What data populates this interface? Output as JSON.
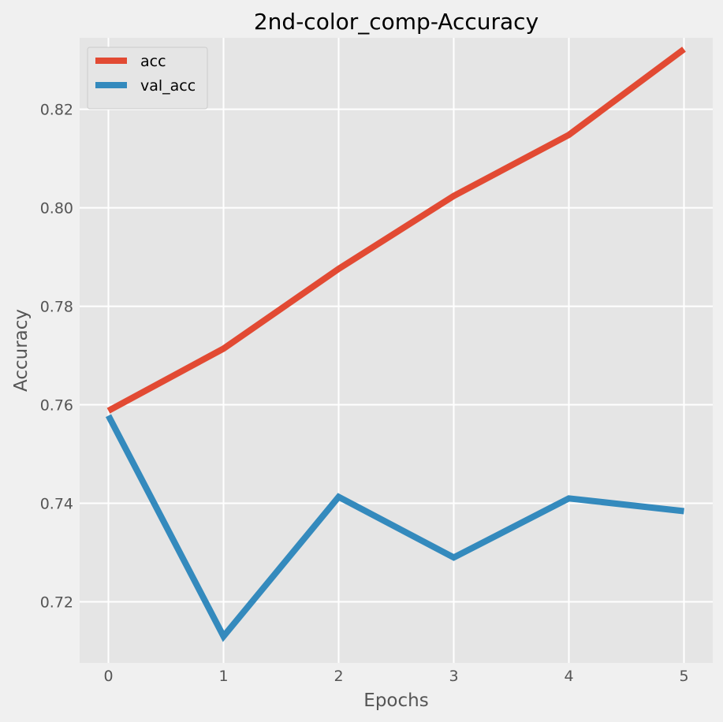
{
  "chart_data": {
    "type": "line",
    "title": "2nd-color_comp-Accuracy",
    "xlabel": "Epochs",
    "ylabel": "Accuracy",
    "x": [
      0,
      1,
      2,
      3,
      4,
      5
    ],
    "x_tick_labels": [
      "0",
      "1",
      "2",
      "3",
      "4",
      "5"
    ],
    "y_tick_values": [
      0.72,
      0.74,
      0.76,
      0.78,
      0.8,
      0.82
    ],
    "y_tick_labels": [
      "0.72",
      "0.74",
      "0.76",
      "0.78",
      "0.80",
      "0.82"
    ],
    "xlim": [
      -0.25,
      5.25
    ],
    "ylim": [
      0.7076,
      0.8345
    ],
    "grid": true,
    "legend_position": "top-left",
    "series": [
      {
        "name": "acc",
        "color": "#E24A33",
        "values": [
          0.7588,
          0.7714,
          0.7876,
          0.8024,
          0.8148,
          0.8322
        ]
      },
      {
        "name": "val_acc",
        "color": "#348ABD",
        "values": [
          0.7578,
          0.713,
          0.7413,
          0.729,
          0.741,
          0.7384
        ]
      }
    ],
    "colors": {
      "figure_background": "#F0F0F0",
      "plot_background": "#E5E5E5",
      "grid": "#FFFFFF",
      "text": "#555555"
    }
  }
}
